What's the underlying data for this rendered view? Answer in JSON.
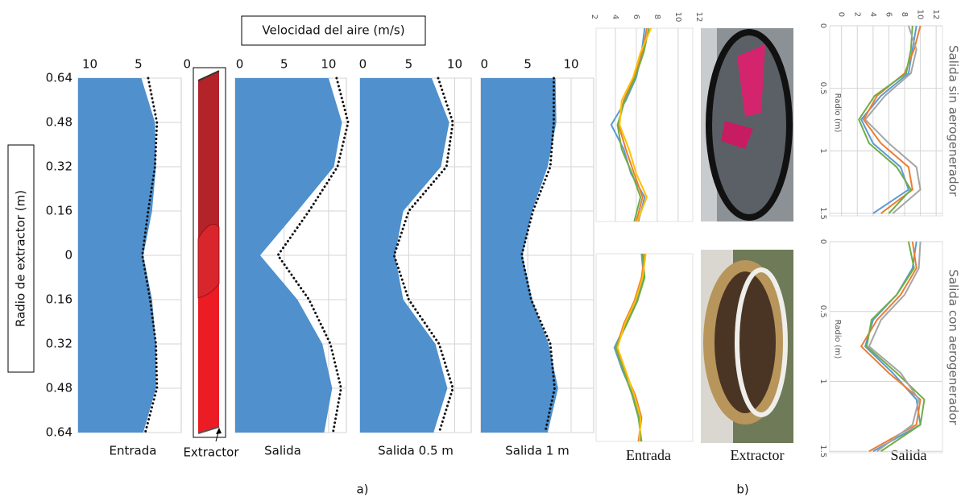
{
  "chart_data": [
    {
      "type": "profile",
      "title": "Velocidad del aire (m/s)",
      "ylabel": "Radio de extractor (m)",
      "y": [
        0.64,
        0.48,
        0.32,
        0.16,
        0,
        -0.16,
        -0.32,
        -0.48,
        -0.64
      ],
      "ylim": [
        -0.64,
        0.64
      ],
      "yticks": [
        0.64,
        0.48,
        0.32,
        0.16,
        0,
        {
          "value": -0.16,
          "label": "0.16"
        },
        {
          "value": -0.32,
          "label": "0.32"
        },
        {
          "value": -0.48,
          "label": "0.48"
        },
        {
          "value": -0.64,
          "label": "0.64"
        }
      ],
      "grid": true,
      "color": "#4f90cd",
      "panels": [
        {
          "label": "Entrada",
          "xlim": [
            11.2,
            0.6
          ],
          "xticks": [
            10,
            5,
            0
          ],
          "values": [
            4.7,
            3.3,
            3.2,
            3.6,
            4.5,
            3.6,
            3.2,
            3.2,
            4.5
          ],
          "dotted_values": [
            4.0,
            3.1,
            3.3,
            4.0,
            4.6,
            3.8,
            3.2,
            3.1,
            4.3
          ]
        },
        {
          "label": "Salida",
          "xlim": [
            -0.5,
            12
          ],
          "xticks": [
            0,
            5,
            10
          ],
          "values": [
            10,
            11.5,
            10.6,
            6.5,
            2.3,
            6.5,
            9.3,
            10.4,
            9.5
          ],
          "dotted_values": [
            10.9,
            12.2,
            11.0,
            7.8,
            4.3,
            7.8,
            10.2,
            11.4,
            10.5
          ]
        },
        {
          "label": "Salida 0.5 m",
          "xlim": [
            -0.3,
            11.8
          ],
          "xticks": [
            0,
            5,
            10
          ],
          "values": [
            7.5,
            9.4,
            8.5,
            4.4,
            3.5,
            4.4,
            7.9,
            9.2,
            7.7
          ],
          "dotted_values": [
            8.2,
            9.8,
            9.1,
            5.0,
            3.4,
            5.0,
            8.3,
            9.8,
            8.3
          ]
        },
        {
          "label": "Salida 1 m",
          "xlim": [
            -0.4,
            12.6
          ],
          "xticks": [
            0,
            5,
            10
          ],
          "values": [
            8.2,
            8.3,
            7.3,
            5.5,
            4.4,
            5.5,
            7.4,
            8.5,
            7.3
          ],
          "dotted_values": [
            8.0,
            8.0,
            7.6,
            5.6,
            4.3,
            5.4,
            7.6,
            8.1,
            7.0
          ]
        }
      ]
    },
    {
      "type": "line",
      "x": [
        0,
        0.19,
        0.38,
        0.56,
        0.75,
        0.94,
        1.13,
        1.31,
        1.5
      ],
      "xlim": [
        0,
        1.5
      ],
      "ylim": [
        2.15,
        11.4
      ],
      "yticks": [
        2,
        4,
        6,
        8,
        10,
        12
      ],
      "series": [
        {
          "color": "#5b9bd5",
          "values": [
            6.8,
            6.5,
            6.0,
            5.0,
            3.6,
            4.8,
            5.5,
            6.8,
            6.2
          ]
        },
        {
          "color": "#ed7d31",
          "values": [
            7.0,
            6.6,
            5.8,
            4.8,
            4.3,
            5.0,
            5.8,
            6.6,
            6.0
          ]
        },
        {
          "color": "#70ad47",
          "values": [
            7.2,
            6.7,
            5.9,
            4.9,
            4.2,
            4.6,
            5.6,
            6.4,
            5.8
          ]
        },
        {
          "color": "#ffc000",
          "values": [
            7.4,
            6.4,
            5.7,
            4.6,
            4.4,
            5.3,
            6.0,
            7.0,
            6.1
          ]
        }
      ]
    },
    {
      "type": "line",
      "x": [
        0,
        0.19,
        0.38,
        0.56,
        0.75,
        0.94,
        1.13,
        1.31,
        1.5
      ],
      "xlim": [
        0,
        1.5
      ],
      "ylim": [
        2.15,
        11.4
      ],
      "series": [
        {
          "color": "#5b9bd5",
          "values": [
            6.5,
            6.7,
            6.0,
            5.0,
            3.9,
            4.7,
            5.7,
            6.3,
            6.4
          ]
        },
        {
          "color": "#ed7d31",
          "values": [
            6.8,
            6.5,
            5.8,
            4.8,
            4.1,
            4.9,
            5.9,
            6.5,
            6.2
          ]
        },
        {
          "color": "#70ad47",
          "values": [
            6.6,
            6.8,
            6.1,
            5.1,
            4.0,
            4.8,
            5.6,
            6.2,
            6.5
          ]
        },
        {
          "color": "#ffc000",
          "values": [
            6.9,
            6.6,
            5.9,
            4.9,
            4.2,
            5.0,
            5.8,
            6.4,
            6.3
          ]
        }
      ]
    },
    {
      "type": "line",
      "title": "Salida sin aerogenerador",
      "xlabel": "Radio (m)",
      "x": [
        0,
        0.19,
        0.38,
        0.56,
        0.75,
        0.94,
        1.13,
        1.31,
        1.5
      ],
      "xlim": [
        0,
        1.52
      ],
      "xticks": [
        0,
        0.5,
        1,
        1.5
      ],
      "ylim": [
        -1.5,
        12.8
      ],
      "yticks": [
        0,
        2,
        4,
        6,
        8,
        10,
        12
      ],
      "series": [
        {
          "color": "#5b9bd5",
          "values": [
            9.5,
            9.0,
            8.5,
            5.0,
            2.5,
            4.0,
            7.5,
            8.5,
            4.0
          ]
        },
        {
          "color": "#ed7d31",
          "values": [
            10,
            9.2,
            8.0,
            4.5,
            2.8,
            5.0,
            8.5,
            9.0,
            5.0
          ]
        },
        {
          "color": "#70ad47",
          "values": [
            9.0,
            8.8,
            8.2,
            4.2,
            2.2,
            3.5,
            7.0,
            8.8,
            6.0
          ]
        },
        {
          "color": "#a5a5a5",
          "values": [
            8.5,
            9.5,
            8.8,
            5.5,
            3.0,
            6.0,
            9.5,
            10.0,
            6.5
          ]
        }
      ]
    },
    {
      "type": "line",
      "title": "Salida con aerogenerador",
      "xlabel": "Radio (m)",
      "x": [
        0,
        0.19,
        0.38,
        0.56,
        0.75,
        0.94,
        1.13,
        1.31,
        1.5
      ],
      "xlim": [
        0,
        1.51
      ],
      "xticks": [
        0,
        0.5,
        1,
        1.5
      ],
      "ylim": [
        -1.5,
        12.8
      ],
      "series": [
        {
          "color": "#5b9bd5",
          "values": [
            9.5,
            9.0,
            7.0,
            4.0,
            3.0,
            6.5,
            9.5,
            10,
            4.0
          ]
        },
        {
          "color": "#ed7d31",
          "values": [
            9.0,
            9.5,
            7.5,
            4.5,
            2.5,
            6.0,
            10,
            9.5,
            3.5
          ]
        },
        {
          "color": "#70ad47",
          "values": [
            8.5,
            9.2,
            7.0,
            3.8,
            3.2,
            7.0,
            10.5,
            10,
            5.0
          ]
        },
        {
          "color": "#a5a5a5",
          "values": [
            10,
            9.8,
            8.0,
            5.0,
            3.5,
            7.5,
            9.8,
            9.0,
            4.5
          ]
        }
      ]
    }
  ],
  "figure": {
    "panel_a": "a)",
    "panel_b": "b)",
    "extractor": "Extractor",
    "b_captions": [
      "Entrada",
      "Extractor",
      "Salida"
    ]
  }
}
